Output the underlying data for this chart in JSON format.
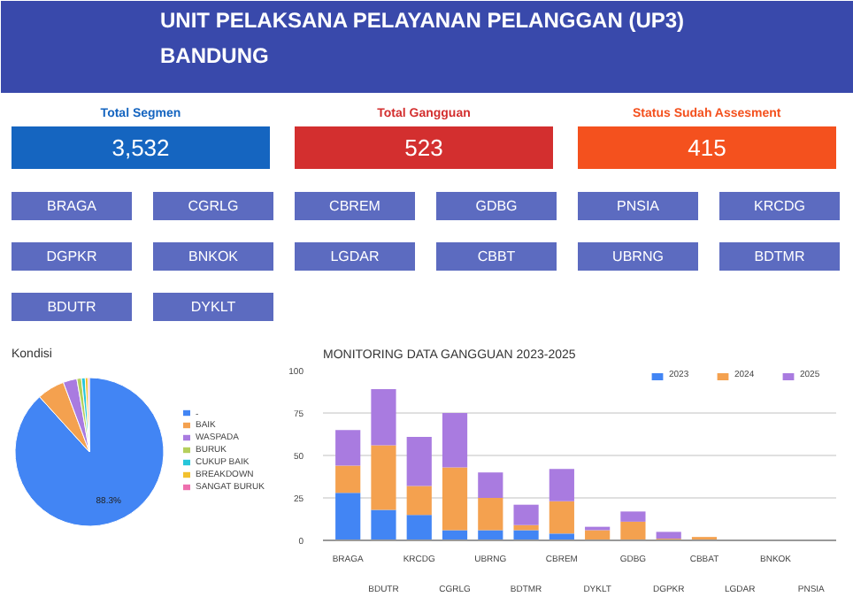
{
  "chart_data": [
    {
      "type": "other",
      "title": "UNIT PELAKSANA PELAYANAN PELANGGAN (UP3)\nBANDUNG",
      "categories": [
        "Total Segmen",
        "Total Gangguan",
        "Status Sudah Assesment"
      ],
      "value_labels": [
        "3,532",
        "523",
        "415"
      ],
      "colors": [
        "#1565c0",
        "#d32f2f",
        "#f4511e"
      ],
      "annotations": [
        "BRAGA",
        "CGRLG",
        "CBREM",
        "GDBG",
        "PNSIA",
        "KRCDG",
        "DGPKR",
        "BNKOK",
        "LGDAR",
        "CBBT",
        "UBRNG",
        "BDTMR",
        "BDUTR",
        "DYKLT"
      ]
    },
    {
      "type": "pie",
      "title": "Kondisi",
      "categories": [
        "-",
        "BAIK",
        "WASPADA",
        "BURUK",
        "CUKUP BAIK",
        "BREAKDOWN",
        "SANGAT BURUK"
      ],
      "values": [
        88.3,
        6,
        3,
        1,
        0.8,
        0.6,
        0.3
      ],
      "value_labels": [
        "88.3%",
        null,
        null,
        null,
        null,
        null,
        null
      ],
      "colors": [
        "#4285f4",
        "#f4a14f",
        "#a97be0",
        "#b5cf5c",
        "#26c6da",
        "#f2c12e",
        "#ee6fae"
      ],
      "legend": "right"
    },
    {
      "type": "bar",
      "title": "MONITORING DATA GANGGUAN 2023-2025",
      "stacked": true,
      "categories": [
        "BRAGA",
        "BDUTR",
        "KRCDG",
        "CGRLG",
        "UBRNG",
        "BDTMR",
        "CBREM",
        "DYKLT",
        "GDBG",
        "DGPKR",
        "CBBAT",
        "LGDAR",
        "BNKOK",
        "PNSIA"
      ],
      "series": [
        {
          "name": "2023",
          "color": "#4285f4",
          "values": [
            28,
            18,
            15,
            6,
            6,
            6,
            4,
            0,
            0,
            0,
            0,
            0,
            0,
            0
          ]
        },
        {
          "name": "2024",
          "color": "#f4a14f",
          "values": [
            16,
            38,
            17,
            37,
            19,
            3,
            19,
            6,
            11,
            1,
            2,
            0,
            0,
            0
          ]
        },
        {
          "name": "2025",
          "color": "#a97be0",
          "values": [
            21,
            33,
            29,
            32,
            15,
            12,
            19,
            2,
            6,
            4,
            0,
            0,
            0,
            0
          ]
        }
      ],
      "ylim": [
        0,
        100
      ],
      "yticks": [
        0,
        25,
        50,
        75,
        100
      ],
      "grid": "y",
      "legend": "top right"
    }
  ]
}
